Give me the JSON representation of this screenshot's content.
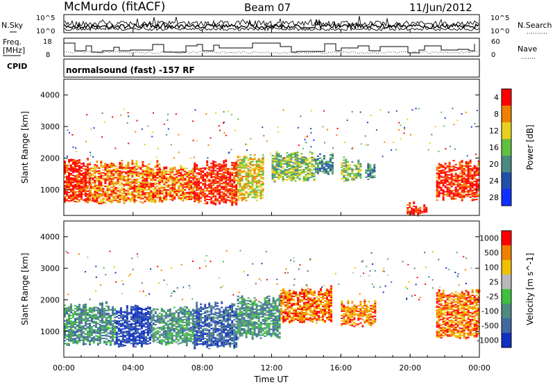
{
  "header": {
    "station": "McMurdo (fitACF)",
    "beam": "Beam 07",
    "date": "11/Jun/2012"
  },
  "noise_panel": {
    "left_label": "N.Sky",
    "right_label": "N.Search",
    "left_ticks": [
      "10^5",
      "10^0"
    ],
    "right_ticks": [
      "10^5",
      "10^0"
    ]
  },
  "freq_panel": {
    "left_label_1": "Freq.",
    "left_label_2": "[MHz]",
    "right_label": "Nave",
    "left_ticks": [
      "18",
      "8"
    ],
    "right_ticks": [
      "60",
      "0"
    ]
  },
  "cpid": {
    "label": "CPID",
    "text": "normalsound (fast) -157 RF"
  },
  "x_axis": {
    "label": "Time UT",
    "ticks": [
      "00:00",
      "04:00",
      "08:00",
      "12:00",
      "16:00",
      "20:00",
      "00:00"
    ]
  },
  "chart_data": [
    {
      "type": "heatmap",
      "name": "Power",
      "ylabel": "Slant Range [km]",
      "xlabel": "Time UT",
      "ylim": [
        180,
        4500
      ],
      "xlim_hours": [
        0,
        24
      ],
      "y_ticks": [
        1000,
        2000,
        3000,
        4000
      ],
      "colorbar": {
        "label": "Power [dB]",
        "ticks": [
          "4",
          "8",
          "12",
          "16",
          "20",
          "24",
          "28"
        ],
        "colors": [
          "#1030ff",
          "#2050a8",
          "#4a8a80",
          "#60c040",
          "#e8d020",
          "#f08000",
          "#ff0000"
        ]
      },
      "echo_regions": [
        {
          "t": [
            0.0,
            1.5
          ],
          "range": [
            600,
            1900
          ],
          "level": 6
        },
        {
          "t": [
            1.5,
            5.5
          ],
          "range": [
            600,
            1800
          ],
          "level": 5
        },
        {
          "t": [
            5.5,
            7.5
          ],
          "range": [
            650,
            1700
          ],
          "level": 5
        },
        {
          "t": [
            7.5,
            10.0
          ],
          "range": [
            550,
            1800
          ],
          "level": 6
        },
        {
          "t": [
            10.0,
            11.5
          ],
          "range": [
            700,
            2000
          ],
          "level": 4
        },
        {
          "t": [
            12.0,
            14.5
          ],
          "range": [
            1300,
            2100
          ],
          "level": 3
        },
        {
          "t": [
            14.5,
            15.5
          ],
          "range": [
            1500,
            2000
          ],
          "level": 2
        },
        {
          "t": [
            16.0,
            17.2
          ],
          "range": [
            1300,
            1900
          ],
          "level": 3
        },
        {
          "t": [
            17.4,
            18.0
          ],
          "range": [
            1300,
            1700
          ],
          "level": 2
        },
        {
          "t": [
            19.8,
            21.0
          ],
          "range": [
            200,
            500
          ],
          "level": 6
        },
        {
          "t": [
            21.5,
            24.0
          ],
          "range": [
            700,
            1800
          ],
          "level": 6
        }
      ]
    },
    {
      "type": "heatmap",
      "name": "Velocity",
      "ylabel": "Slant Range [km]",
      "xlabel": "Time UT",
      "ylim": [
        180,
        4500
      ],
      "xlim_hours": [
        0,
        24
      ],
      "y_ticks": [
        1000,
        2000,
        3000,
        4000
      ],
      "colorbar": {
        "label": "Velocity [m s^-1]",
        "ticks": [
          "1000",
          "500",
          "100",
          "25",
          "-25",
          "-100",
          "-500",
          "-1000"
        ],
        "colors": [
          "#1030c0",
          "#4068a0",
          "#508a80",
          "#40c040",
          "#b8b8b8",
          "#f0c000",
          "#f08000",
          "#ff0000"
        ]
      },
      "echo_regions": [
        {
          "t": [
            0.0,
            3.0
          ],
          "range": [
            600,
            1800
          ],
          "level": 2
        },
        {
          "t": [
            3.0,
            5.0
          ],
          "range": [
            550,
            1700
          ],
          "level": 0
        },
        {
          "t": [
            5.0,
            7.5
          ],
          "range": [
            600,
            1700
          ],
          "level": 2
        },
        {
          "t": [
            7.5,
            10.0
          ],
          "range": [
            500,
            1800
          ],
          "level": 1
        },
        {
          "t": [
            10.0,
            12.5
          ],
          "range": [
            800,
            2000
          ],
          "level": 2
        },
        {
          "t": [
            12.5,
            15.5
          ],
          "range": [
            1300,
            2300
          ],
          "level": 6
        },
        {
          "t": [
            16.0,
            18.0
          ],
          "range": [
            1200,
            1900
          ],
          "level": 6
        },
        {
          "t": [
            21.5,
            24.0
          ],
          "range": [
            800,
            2200
          ],
          "level": 6
        }
      ]
    }
  ]
}
